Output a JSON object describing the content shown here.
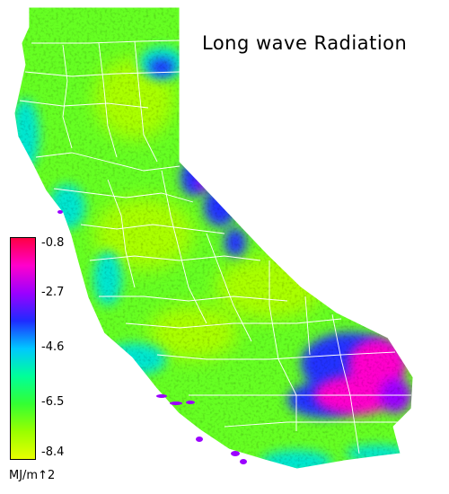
{
  "title": "Long wave Radiation",
  "legend": {
    "ticks": [
      "-0.8",
      "-2.7",
      "-4.6",
      "-6.5",
      "-8.4"
    ],
    "unit": "MJ/m↑2",
    "colors": [
      "#ff0044",
      "#ff00cc",
      "#9b00ff",
      "#1f2bff",
      "#00c8ff",
      "#00ff99",
      "#33ff33",
      "#99ff00",
      "#e8ff00"
    ]
  },
  "map_colors": {
    "base": "#66ff22",
    "green": "#33ff44",
    "yellowgreen": "#aaff00",
    "cyan": "#00e6d0",
    "blue": "#2233ff",
    "purple": "#9b00ff",
    "magenta": "#ff00cc",
    "boundaries": "#ffffff"
  }
}
